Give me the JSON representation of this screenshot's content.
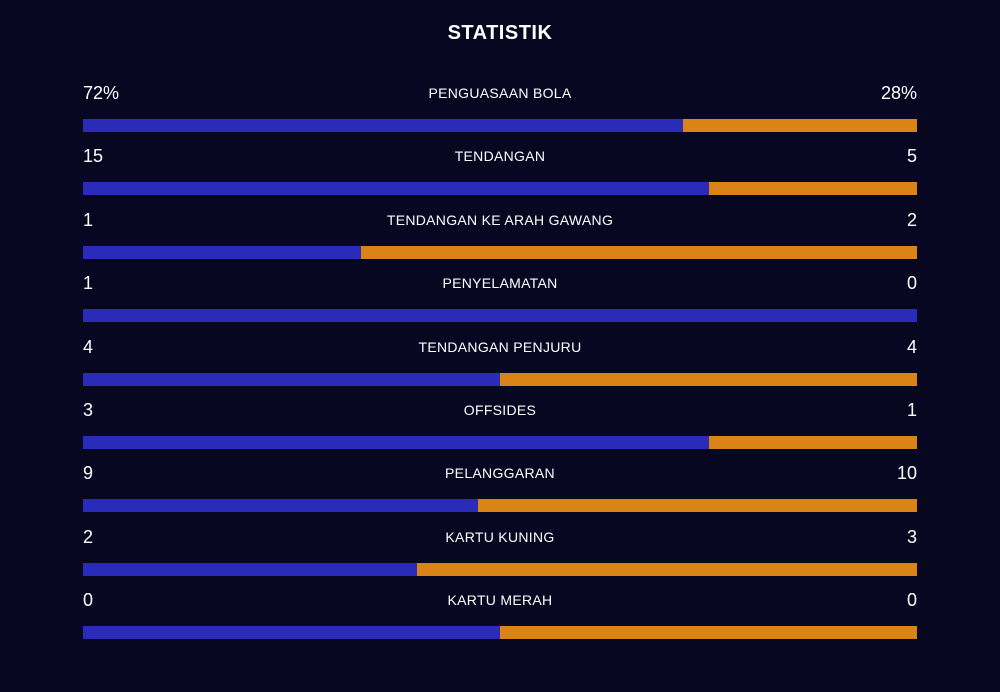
{
  "title": "STATISTIK",
  "colors": {
    "background": "#070722",
    "home": "#2b2bba",
    "away": "#da8418"
  },
  "stats": [
    {
      "label": "PENGUASAAN BOLA",
      "home": "72%",
      "away": "28%",
      "home_share": 0.72
    },
    {
      "label": "TENDANGAN",
      "home": "15",
      "away": "5",
      "home_share": 0.75
    },
    {
      "label": "TENDANGAN KE ARAH GAWANG",
      "home": "1",
      "away": "2",
      "home_share": 0.3333
    },
    {
      "label": "PENYELAMATAN",
      "home": "1",
      "away": "0",
      "home_share": 1.0
    },
    {
      "label": "TENDANGAN PENJURU",
      "home": "4",
      "away": "4",
      "home_share": 0.5
    },
    {
      "label": "OFFSIDES",
      "home": "3",
      "away": "1",
      "home_share": 0.75
    },
    {
      "label": "PELANGGARAN",
      "home": "9",
      "away": "10",
      "home_share": 0.4737
    },
    {
      "label": "KARTU KUNING",
      "home": "2",
      "away": "3",
      "home_share": 0.4
    },
    {
      "label": "KARTU MERAH",
      "home": "0",
      "away": "0",
      "home_share": 0.5
    }
  ]
}
